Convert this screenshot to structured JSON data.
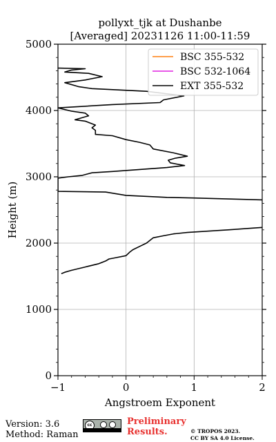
{
  "chart_data": {
    "type": "line",
    "orientation": "vertical-profile",
    "title": [
      "pollyxt_tjk at Dushanbe",
      "[Averaged] 20231126 11:00-11:59"
    ],
    "xlabel": "Angstroem Exponent",
    "ylabel": "Height (m)",
    "xlim": [
      -1,
      2
    ],
    "ylim": [
      0,
      5000
    ],
    "xticks": [
      -1,
      0,
      1,
      2
    ],
    "xtick_labels": [
      "−1",
      "0",
      "1",
      "2"
    ],
    "yticks": [
      0,
      1000,
      2000,
      3000,
      4000,
      5000
    ],
    "ytick_labels": [
      "0",
      "1000",
      "2000",
      "3000",
      "4000",
      "5000"
    ],
    "grid": true,
    "legend_position": "top-right",
    "series": [
      {
        "name": "BSC 355-532",
        "color": "#ff7f0e",
        "points": []
      },
      {
        "name": "BSC 532-1064",
        "color": "#e020e0",
        "points": []
      },
      {
        "name": "EXT 355-532",
        "color": "#000000",
        "points": [
          [
            -0.95,
            1540
          ],
          [
            -0.9,
            1560
          ],
          [
            -0.8,
            1590
          ],
          [
            -0.6,
            1640
          ],
          [
            -0.4,
            1690
          ],
          [
            -0.3,
            1730
          ],
          [
            -0.25,
            1760
          ],
          [
            -0.15,
            1780
          ],
          [
            0.0,
            1810
          ],
          [
            0.05,
            1860
          ],
          [
            0.1,
            1900
          ],
          [
            0.22,
            1960
          ],
          [
            0.3,
            2000
          ],
          [
            0.4,
            2080
          ],
          [
            0.55,
            2110
          ],
          [
            0.7,
            2140
          ],
          [
            0.9,
            2160
          ],
          [
            1.2,
            2180
          ],
          [
            1.5,
            2200
          ],
          [
            2.05,
            2240
          ],
          [
            2.05,
            2650
          ],
          [
            1.0,
            2680
          ],
          [
            0.6,
            2690
          ],
          [
            0.0,
            2720
          ],
          [
            -0.3,
            2770
          ],
          [
            -1.0,
            2780
          ],
          [
            -1.0,
            2980
          ],
          [
            -0.85,
            3000
          ],
          [
            -0.65,
            3020
          ],
          [
            -0.5,
            3060
          ],
          [
            -0.2,
            3080
          ],
          [
            0.2,
            3110
          ],
          [
            0.6,
            3140
          ],
          [
            0.86,
            3170
          ],
          [
            0.65,
            3210
          ],
          [
            0.62,
            3250
          ],
          [
            0.72,
            3280
          ],
          [
            0.9,
            3310
          ],
          [
            0.7,
            3360
          ],
          [
            0.4,
            3420
          ],
          [
            0.35,
            3480
          ],
          [
            0.2,
            3520
          ],
          [
            0.0,
            3560
          ],
          [
            -0.2,
            3620
          ],
          [
            -0.45,
            3640
          ],
          [
            -0.45,
            3700
          ],
          [
            -0.5,
            3740
          ],
          [
            -0.45,
            3780
          ],
          [
            -0.6,
            3840
          ],
          [
            -0.75,
            3860
          ],
          [
            -0.55,
            3920
          ],
          [
            -0.6,
            3960
          ],
          [
            -0.8,
            3990
          ],
          [
            -1.0,
            4040
          ],
          [
            -0.2,
            4090
          ],
          [
            0.5,
            4120
          ],
          [
            0.55,
            4160
          ],
          [
            0.85,
            4220
          ],
          [
            0.3,
            4290
          ],
          [
            -0.5,
            4330
          ],
          [
            -0.7,
            4360
          ],
          [
            -0.9,
            4420
          ],
          [
            -0.6,
            4460
          ],
          [
            -0.35,
            4510
          ],
          [
            -0.55,
            4560
          ],
          [
            -0.9,
            4580
          ],
          [
            -0.8,
            4610
          ],
          [
            -0.6,
            4630
          ],
          [
            -1.0,
            4640
          ]
        ]
      }
    ]
  },
  "footer": {
    "version": "Version: 3.6",
    "method": "Method: Raman",
    "preliminary_line1": "Preliminary",
    "preliminary_line2": "Results.",
    "copyright_line1": "© TROPOS 2023.",
    "copyright_line2": "CC BY SA 4.0 License.",
    "license_badge_icon": "cc-by-sa-badge"
  }
}
